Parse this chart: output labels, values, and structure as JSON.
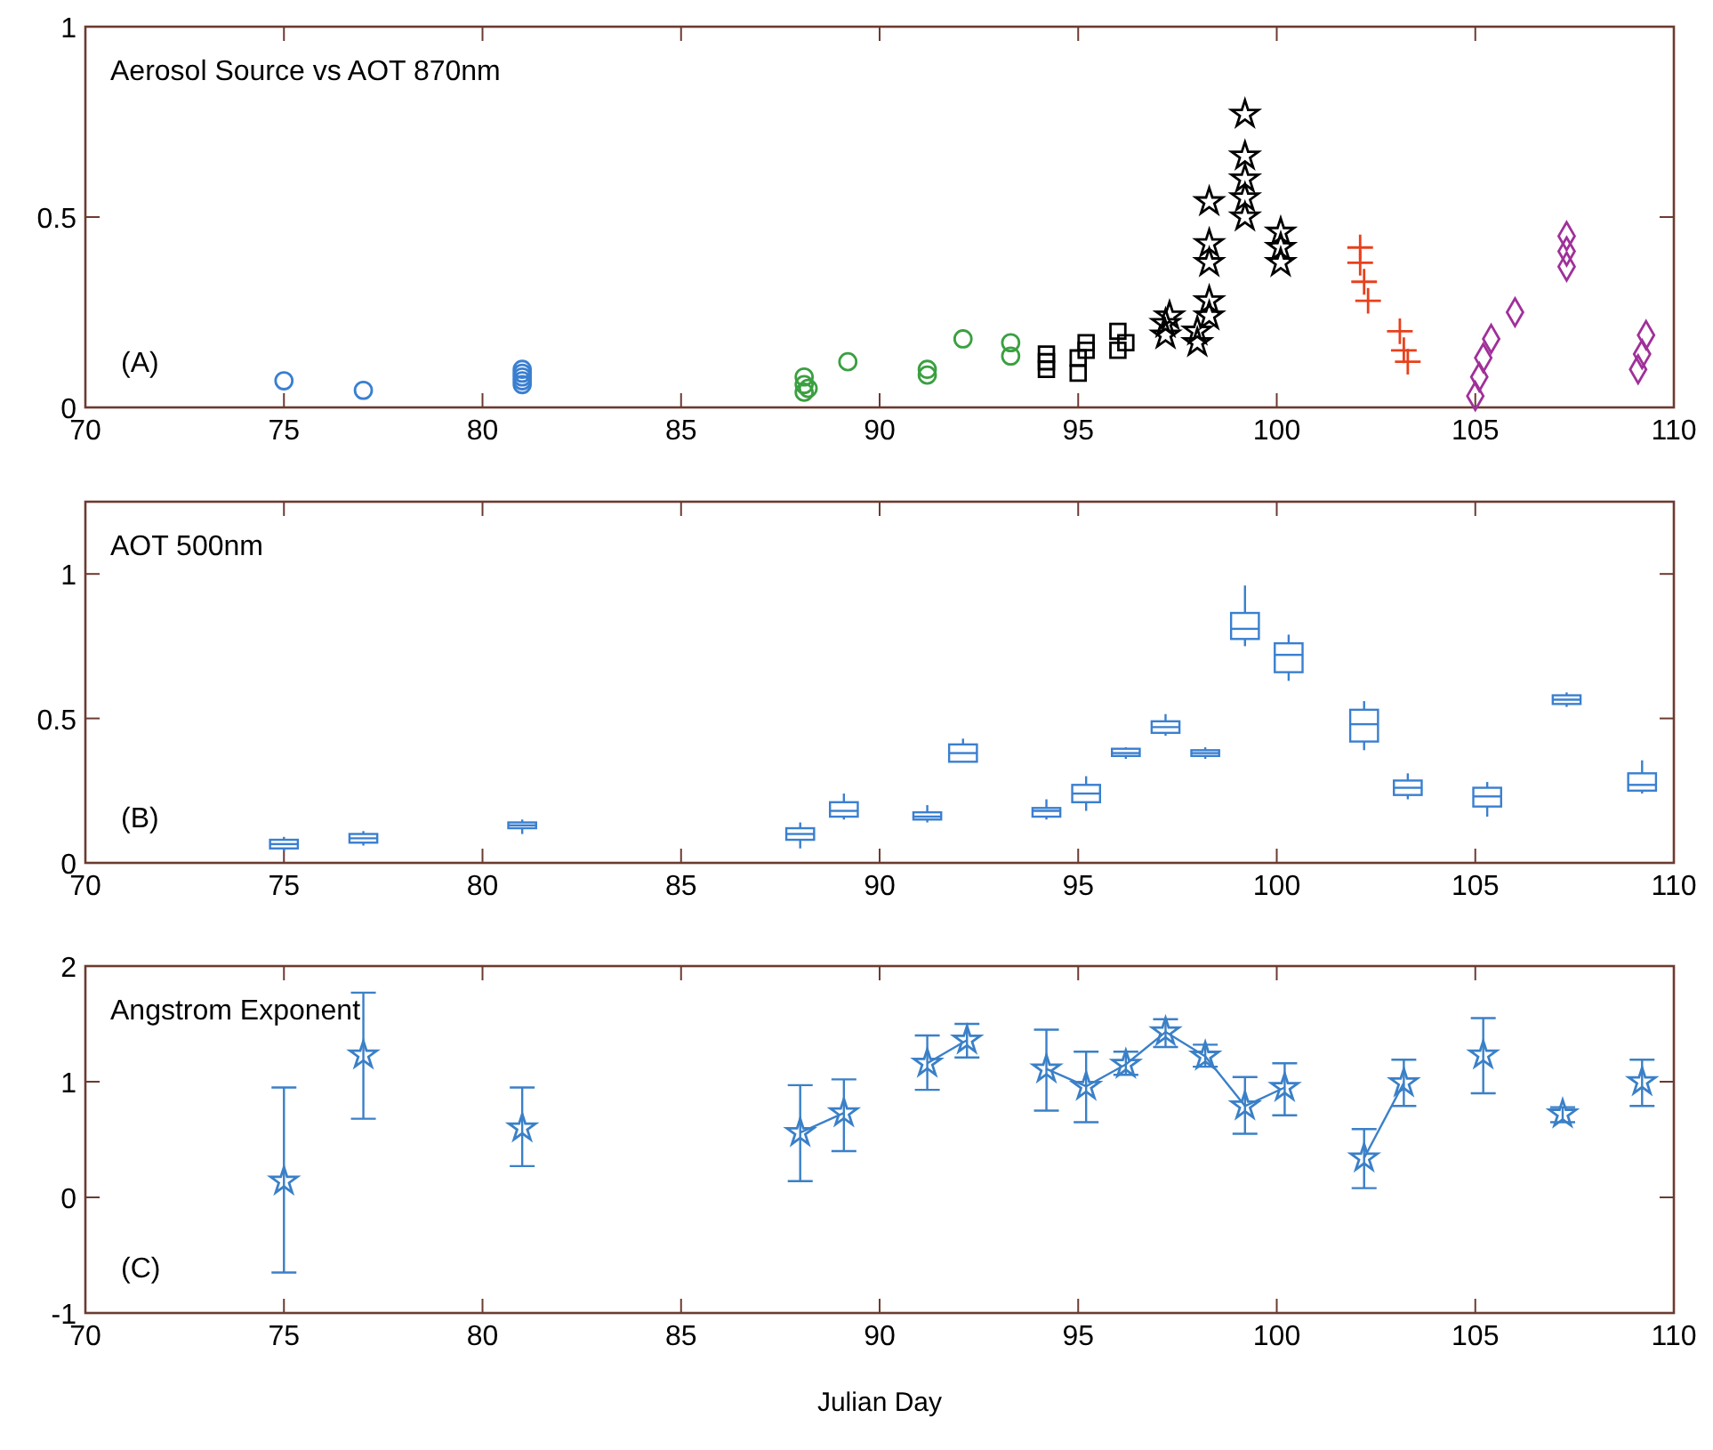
{
  "chart_data": [
    {
      "type": "scatter",
      "title": "Aerosol Source vs AOT 870nm",
      "annotations": [
        "(A)"
      ],
      "xlim": [
        70,
        110
      ],
      "xticks": [
        70,
        75,
        80,
        85,
        90,
        95,
        100,
        105,
        110
      ],
      "ylim": [
        0,
        1
      ],
      "yticks": [
        0,
        0.5,
        1
      ],
      "series": [
        {
          "color": "#3a7fd0",
          "marker": "circle",
          "x": [
            75,
            77,
            81,
            81,
            81,
            81,
            81
          ],
          "values": [
            0.07,
            0.045,
            0.06,
            0.07,
            0.08,
            0.09,
            0.1
          ]
        },
        {
          "color": "#3aa040",
          "marker": "circle",
          "x": [
            88.1,
            88.1,
            88.1,
            88.2,
            89.2,
            91.2,
            91.2,
            92.1,
            93.3,
            93.3
          ],
          "values": [
            0.04,
            0.06,
            0.08,
            0.05,
            0.12,
            0.085,
            0.1,
            0.18,
            0.135,
            0.17
          ]
        },
        {
          "color": "#000000",
          "marker": "square",
          "x": [
            94.2,
            94.2,
            94.2,
            95,
            95,
            95.2,
            95.2,
            96,
            96,
            96.2
          ],
          "values": [
            0.1,
            0.12,
            0.14,
            0.09,
            0.13,
            0.15,
            0.17,
            0.15,
            0.2,
            0.17
          ]
        },
        {
          "color": "#000000",
          "marker": "star",
          "x": [
            97.2,
            97.2,
            97.3,
            98,
            98,
            98.3,
            98.3,
            98.3,
            98.3,
            98.3,
            99.2,
            99.2,
            99.2,
            99.2,
            99.2,
            100.1,
            100.1,
            100.1
          ],
          "values": [
            0.19,
            0.22,
            0.24,
            0.17,
            0.2,
            0.24,
            0.28,
            0.38,
            0.43,
            0.54,
            0.5,
            0.55,
            0.6,
            0.66,
            0.77,
            0.38,
            0.42,
            0.46
          ]
        },
        {
          "color": "#e8401c",
          "marker": "cross",
          "x": [
            102.1,
            102.1,
            102.2,
            102.3,
            103.1,
            103.2,
            103.3
          ],
          "values": [
            0.42,
            0.38,
            0.33,
            0.28,
            0.2,
            0.15,
            0.12
          ]
        },
        {
          "color": "#a0309a",
          "marker": "diamond",
          "x": [
            105,
            105.1,
            105.2,
            105.4,
            106,
            107.3,
            107.3,
            107.3,
            109.1,
            109.2,
            109.3
          ],
          "values": [
            0.03,
            0.08,
            0.13,
            0.18,
            0.25,
            0.37,
            0.41,
            0.45,
            0.1,
            0.14,
            0.19
          ]
        }
      ]
    },
    {
      "type": "box",
      "title": "AOT 500nm",
      "annotations": [
        "(B)"
      ],
      "xlim": [
        70,
        110
      ],
      "xticks": [
        70,
        75,
        80,
        85,
        90,
        95,
        100,
        105,
        110
      ],
      "ylim": [
        0,
        1.25
      ],
      "yticks": [
        0,
        0.5,
        1
      ],
      "color": "#3a7fd0",
      "x": [
        75,
        77,
        81,
        88,
        89.1,
        91.2,
        92.1,
        94.2,
        95.2,
        96.2,
        97.2,
        98.2,
        99.2,
        100.3,
        102.2,
        103.3,
        105.3,
        107.3,
        109.2
      ],
      "boxes": [
        {
          "low": 0.04,
          "q1": 0.05,
          "median": 0.065,
          "q3": 0.08,
          "high": 0.09
        },
        {
          "low": 0.06,
          "q1": 0.07,
          "median": 0.085,
          "q3": 0.1,
          "high": 0.11
        },
        {
          "low": 0.1,
          "q1": 0.12,
          "median": 0.13,
          "q3": 0.14,
          "high": 0.15
        },
        {
          "low": 0.05,
          "q1": 0.08,
          "median": 0.1,
          "q3": 0.12,
          "high": 0.14
        },
        {
          "low": 0.15,
          "q1": 0.16,
          "median": 0.18,
          "q3": 0.21,
          "high": 0.24
        },
        {
          "low": 0.14,
          "q1": 0.15,
          "median": 0.16,
          "q3": 0.175,
          "high": 0.2
        },
        {
          "low": 0.35,
          "q1": 0.35,
          "median": 0.38,
          "q3": 0.41,
          "high": 0.43
        },
        {
          "low": 0.15,
          "q1": 0.16,
          "median": 0.18,
          "q3": 0.19,
          "high": 0.22
        },
        {
          "low": 0.18,
          "q1": 0.21,
          "median": 0.24,
          "q3": 0.27,
          "high": 0.3
        },
        {
          "low": 0.36,
          "q1": 0.37,
          "median": 0.38,
          "q3": 0.395,
          "high": 0.4
        },
        {
          "low": 0.44,
          "q1": 0.45,
          "median": 0.47,
          "q3": 0.49,
          "high": 0.515
        },
        {
          "low": 0.36,
          "q1": 0.37,
          "median": 0.38,
          "q3": 0.39,
          "high": 0.4
        },
        {
          "low": 0.75,
          "q1": 0.775,
          "median": 0.81,
          "q3": 0.865,
          "high": 0.96
        },
        {
          "low": 0.63,
          "q1": 0.66,
          "median": 0.72,
          "q3": 0.76,
          "high": 0.79
        },
        {
          "low": 0.39,
          "q1": 0.42,
          "median": 0.48,
          "q3": 0.53,
          "high": 0.56
        },
        {
          "low": 0.22,
          "q1": 0.235,
          "median": 0.26,
          "q3": 0.285,
          "high": 0.31
        },
        {
          "low": 0.16,
          "q1": 0.195,
          "median": 0.23,
          "q3": 0.26,
          "high": 0.28
        },
        {
          "low": 0.54,
          "q1": 0.55,
          "median": 0.565,
          "q3": 0.58,
          "high": 0.59
        },
        {
          "low": 0.24,
          "q1": 0.25,
          "median": 0.27,
          "q3": 0.31,
          "high": 0.355
        }
      ]
    },
    {
      "type": "line",
      "title": "Angstrom Exponent",
      "annotations": [
        "(C)"
      ],
      "xlabel": "Julian Day",
      "xlim": [
        70,
        110
      ],
      "xticks": [
        70,
        75,
        80,
        85,
        90,
        95,
        100,
        105,
        110
      ],
      "ylim": [
        -1,
        2
      ],
      "yticks": [
        -1,
        0,
        1,
        2
      ],
      "marker": "star",
      "line_style": "solid",
      "series": [
        {
          "color": "#3a80c8",
          "x": [
            75
          ],
          "values": [
            0.14
          ],
          "errors": [
            [
              -0.65,
              0.95
            ]
          ]
        },
        {
          "color": "#3a80c8",
          "x": [
            77
          ],
          "values": [
            1.23
          ],
          "errors": [
            [
              0.68,
              1.77
            ]
          ]
        },
        {
          "color": "#3a80c8",
          "x": [
            81
          ],
          "values": [
            0.6
          ],
          "errors": [
            [
              0.27,
              0.95
            ]
          ]
        },
        {
          "color": "#3a80c8",
          "x": [
            88,
            89.1
          ],
          "values": [
            0.56,
            0.73
          ],
          "errors": [
            [
              0.14,
              0.97
            ],
            [
              0.4,
              1.02
            ]
          ]
        },
        {
          "color": "#3a80c8",
          "x": [
            91.2,
            92.2
          ],
          "values": [
            1.16,
            1.36
          ],
          "errors": [
            [
              0.93,
              1.4
            ],
            [
              1.21,
              1.5
            ]
          ]
        },
        {
          "color": "#3a80c8",
          "x": [
            94.2,
            95.2,
            96.2,
            97.2,
            98.2,
            99.2,
            100.2
          ],
          "values": [
            1.11,
            0.96,
            1.15,
            1.43,
            1.22,
            0.79,
            0.95
          ],
          "errors": [
            [
              0.75,
              1.45
            ],
            [
              0.65,
              1.26
            ],
            [
              1.06,
              1.26
            ],
            [
              1.3,
              1.54
            ],
            [
              1.13,
              1.32
            ],
            [
              0.55,
              1.04
            ],
            [
              0.71,
              1.16
            ]
          ]
        },
        {
          "color": "#3a80c8",
          "x": [
            102.2,
            103.2
          ],
          "values": [
            0.34,
            0.99
          ],
          "errors": [
            [
              0.08,
              0.59
            ],
            [
              0.79,
              1.19
            ]
          ]
        },
        {
          "color": "#3a80c8",
          "x": [
            105.2
          ],
          "values": [
            1.23
          ],
          "errors": [
            [
              0.9,
              1.55
            ]
          ]
        },
        {
          "color": "#3a80c8",
          "x": [
            107.2
          ],
          "values": [
            0.72
          ],
          "errors": [
            [
              0.65,
              0.78
            ]
          ]
        },
        {
          "color": "#3a80c8",
          "x": [
            109.2
          ],
          "values": [
            1.0
          ],
          "errors": [
            [
              0.79,
              1.19
            ]
          ]
        }
      ]
    }
  ]
}
